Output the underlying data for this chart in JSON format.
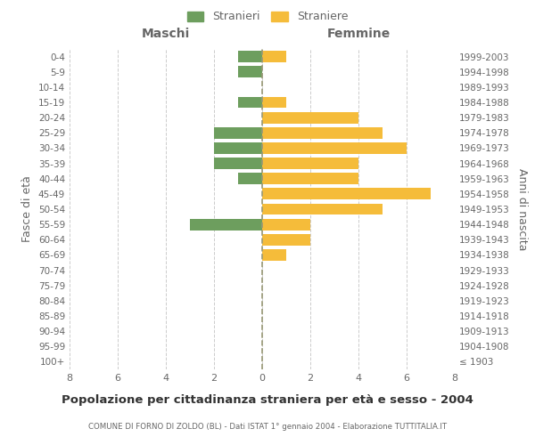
{
  "age_groups": [
    "100+",
    "95-99",
    "90-94",
    "85-89",
    "80-84",
    "75-79",
    "70-74",
    "65-69",
    "60-64",
    "55-59",
    "50-54",
    "45-49",
    "40-44",
    "35-39",
    "30-34",
    "25-29",
    "20-24",
    "15-19",
    "10-14",
    "5-9",
    "0-4"
  ],
  "birth_years": [
    "≤ 1903",
    "1904-1908",
    "1909-1913",
    "1914-1918",
    "1919-1923",
    "1924-1928",
    "1929-1933",
    "1934-1938",
    "1939-1943",
    "1944-1948",
    "1949-1953",
    "1954-1958",
    "1959-1963",
    "1964-1968",
    "1969-1973",
    "1974-1978",
    "1979-1983",
    "1984-1988",
    "1989-1993",
    "1994-1998",
    "1999-2003"
  ],
  "males": [
    0,
    0,
    0,
    0,
    0,
    0,
    0,
    0,
    0,
    3,
    0,
    0,
    1,
    2,
    2,
    2,
    0,
    1,
    0,
    1,
    1
  ],
  "females": [
    0,
    0,
    0,
    0,
    0,
    0,
    0,
    1,
    2,
    2,
    5,
    7,
    4,
    4,
    6,
    5,
    4,
    1,
    0,
    0,
    1
  ],
  "male_color": "#6d9e5e",
  "female_color": "#f5bc3a",
  "grid_color": "#cccccc",
  "text_color": "#666666",
  "center_line_color": "#999977",
  "title": "Popolazione per cittadinanza straniera per età e sesso - 2004",
  "subtitle": "COMUNE DI FORNO DI ZOLDO (BL) - Dati ISTAT 1° gennaio 2004 - Elaborazione TUTTITALIA.IT",
  "left_label": "Maschi",
  "right_label": "Femmine",
  "y_left_label": "Fasce di età",
  "y_right_label": "Anni di nascita",
  "legend_male": "Stranieri",
  "legend_female": "Straniere",
  "xlim": 8,
  "background_color": "#ffffff"
}
